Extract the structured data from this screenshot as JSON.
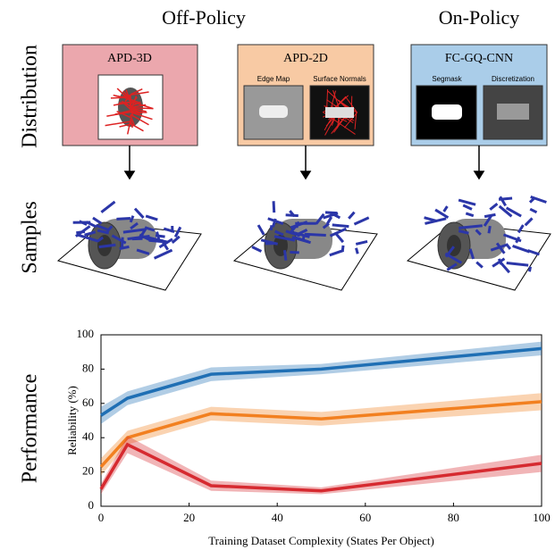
{
  "diagram": {
    "column_headers": [
      "Off-Policy",
      "On-Policy"
    ],
    "row_labels": [
      "Distribution",
      "Samples",
      "Performance"
    ],
    "boxes": [
      {
        "title": "APD-3D"
      },
      {
        "title": "APD-2D",
        "panels": [
          "Edge Map",
          "Surface Normals"
        ]
      },
      {
        "title": "FC-GQ-CNN",
        "panels": [
          "Segmask",
          "Discretization"
        ]
      }
    ]
  },
  "chart_data": {
    "type": "line",
    "x_label": "Training Dataset Complexity (States Per Object)",
    "y_label": "Reliability (%)",
    "x": [
      0,
      6,
      25,
      50,
      100
    ],
    "series": [
      {
        "color": "#1f6fb4",
        "values": [
          53,
          63,
          77,
          80,
          92
        ],
        "errors": [
          5,
          4,
          4,
          3,
          4
        ]
      },
      {
        "color": "#f28020",
        "values": [
          23,
          40,
          54,
          51,
          61
        ],
        "errors": [
          5,
          4,
          4,
          4,
          5
        ]
      },
      {
        "color": "#d62a30",
        "values": [
          10,
          36,
          12,
          9,
          25
        ],
        "errors": [
          3,
          5,
          3,
          2,
          5
        ]
      }
    ],
    "xlim": [
      0,
      100
    ],
    "xticks": [
      0,
      20,
      40,
      60,
      80,
      100
    ],
    "ylim": [
      0,
      100
    ],
    "yticks": [
      0,
      20,
      40,
      60,
      80,
      100
    ]
  }
}
